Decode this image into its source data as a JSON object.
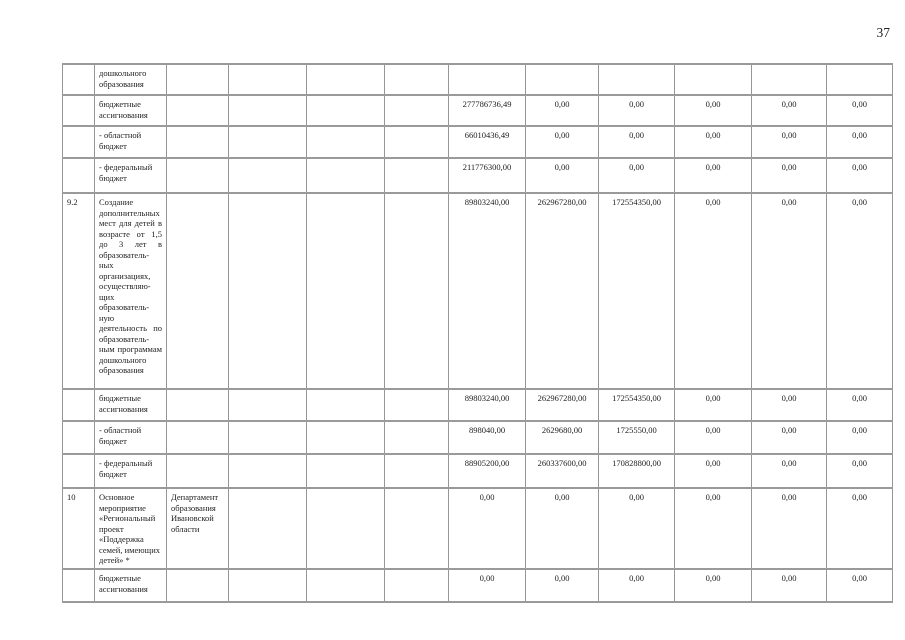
{
  "page": {
    "number": "37"
  },
  "table": {
    "rows": [
      {
        "no": "",
        "name": "дошкольного образования",
        "executor": "",
        "justify": false,
        "values": [
          "",
          "",
          "",
          "",
          "",
          ""
        ]
      },
      {
        "no": "",
        "name": "бюджетные ассигнования",
        "executor": "",
        "justify": false,
        "values": [
          "277786736,49",
          "0,00",
          "0,00",
          "0,00",
          "0,00",
          "0,00"
        ]
      },
      {
        "no": "",
        "name": "- областной бюджет",
        "executor": "",
        "justify": false,
        "values": [
          "66010436,49",
          "0,00",
          "0,00",
          "0,00",
          "0,00",
          "0,00"
        ]
      },
      {
        "no": "",
        "name": "- федеральный бюджет",
        "executor": "",
        "justify": false,
        "values": [
          "211776300,00",
          "0,00",
          "0,00",
          "0,00",
          "0,00",
          "0,00"
        ]
      },
      {
        "no": "9.2",
        "name": "Создание дополнительных мест для детей в возрасте от 1,5 до 3 лет в образователь-ных организациях, осуществляю-щих образователь-ную деятельность по образователь-ным программам дошкольного образования",
        "executor": "",
        "justify": true,
        "values": [
          "89803240,00",
          "262967280,00",
          "172554350,00",
          "0,00",
          "0,00",
          "0,00"
        ]
      },
      {
        "no": "",
        "name": "бюджетные ассигнования",
        "executor": "",
        "justify": false,
        "values": [
          "89803240,00",
          "262967280,00",
          "172554350,00",
          "0,00",
          "0,00",
          "0,00"
        ]
      },
      {
        "no": "",
        "name": "- областной бюджет",
        "executor": "",
        "justify": false,
        "values": [
          "898040,00",
          "2629680,00",
          "1725550,00",
          "0,00",
          "0,00",
          "0,00"
        ]
      },
      {
        "no": "",
        "name": "- федеральный бюджет",
        "executor": "",
        "justify": false,
        "values": [
          "88905200,00",
          "260337600,00",
          "170828800,00",
          "0,00",
          "0,00",
          "0,00"
        ]
      },
      {
        "no": "10",
        "name": "Основное мероприятие «Региональный проект «Поддержка семей, имеющих детей» *",
        "executor": "Департамент образования Ивановской области",
        "justify": false,
        "values": [
          "0,00",
          "0,00",
          "0,00",
          "0,00",
          "0,00",
          "0,00"
        ]
      },
      {
        "no": "",
        "name": "бюджетные ассигнования",
        "executor": "",
        "justify": false,
        "values": [
          "0,00",
          "0,00",
          "0,00",
          "0,00",
          "0,00",
          "0,00"
        ]
      }
    ]
  }
}
